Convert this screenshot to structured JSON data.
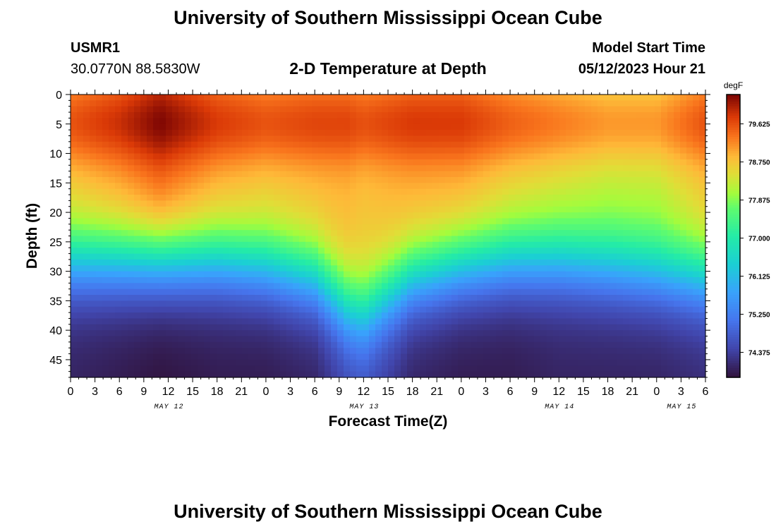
{
  "page": {
    "title": "University of Southern Mississippi Ocean Cube",
    "footer_title": "University of Southern Mississippi Ocean Cube"
  },
  "header": {
    "station_id": "USMR1",
    "coordinates": "30.0770N  88.5830W",
    "plot_title": "2-D Temperature at Depth",
    "model_label": "Model Start Time",
    "model_time": "05/12/2023 Hour 21"
  },
  "chart_data": {
    "type": "heatmap",
    "title": "2-D Temperature at Depth",
    "xlabel": "Forecast Time(Z)",
    "ylabel": "Depth (ft)",
    "x_range_hours": [
      0,
      78
    ],
    "x_ticks": [
      {
        "h": 0,
        "label": "0"
      },
      {
        "h": 3,
        "label": "3"
      },
      {
        "h": 6,
        "label": "6"
      },
      {
        "h": 9,
        "label": "9"
      },
      {
        "h": 12,
        "label": "12"
      },
      {
        "h": 15,
        "label": "15"
      },
      {
        "h": 18,
        "label": "18"
      },
      {
        "h": 21,
        "label": "21"
      },
      {
        "h": 24,
        "label": "0"
      },
      {
        "h": 27,
        "label": "3"
      },
      {
        "h": 30,
        "label": "6"
      },
      {
        "h": 33,
        "label": "9"
      },
      {
        "h": 36,
        "label": "12"
      },
      {
        "h": 39,
        "label": "15"
      },
      {
        "h": 42,
        "label": "18"
      },
      {
        "h": 45,
        "label": "21"
      },
      {
        "h": 48,
        "label": "0"
      },
      {
        "h": 51,
        "label": "3"
      },
      {
        "h": 54,
        "label": "6"
      },
      {
        "h": 57,
        "label": "9"
      },
      {
        "h": 60,
        "label": "12"
      },
      {
        "h": 63,
        "label": "15"
      },
      {
        "h": 66,
        "label": "18"
      },
      {
        "h": 69,
        "label": "21"
      },
      {
        "h": 72,
        "label": "0"
      },
      {
        "h": 75,
        "label": "3"
      },
      {
        "h": 78,
        "label": "6"
      }
    ],
    "date_labels": [
      {
        "h": 12,
        "label": "MAY 12"
      },
      {
        "h": 36,
        "label": "MAY 13"
      },
      {
        "h": 60,
        "label": "MAY 14"
      },
      {
        "h": 75,
        "label": "MAY 15"
      }
    ],
    "y_range": [
      0,
      48
    ],
    "y_ticks": [
      0,
      5,
      10,
      15,
      20,
      25,
      30,
      35,
      40,
      45
    ],
    "colorbar": {
      "unit": "degF",
      "range": [
        73.8,
        80.3
      ],
      "ticks": [
        74.375,
        75.25,
        76.125,
        77.0,
        77.875,
        78.75,
        79.625
      ],
      "tick_labels": [
        "74.375",
        "75.250",
        "76.125",
        "77.000",
        "77.875",
        "78.750",
        "79.625"
      ]
    },
    "profile_hours": [
      0,
      6,
      11,
      18,
      24,
      30,
      34,
      36,
      42,
      48,
      54,
      60,
      66,
      72,
      78
    ],
    "thermocline_depth_ft": [
      28,
      28,
      28,
      28,
      29,
      31,
      36,
      37,
      31,
      29,
      28,
      28,
      29,
      30,
      31
    ],
    "surface_layer_peak_degF": [
      79.6,
      79.9,
      80.3,
      79.8,
      79.6,
      79.7,
      79.7,
      79.6,
      79.8,
      79.8,
      79.5,
      79.3,
      79.1,
      79.1,
      79.6
    ],
    "bottom_temp_degF": [
      74.0,
      73.9,
      73.8,
      73.9,
      73.9,
      74.0,
      74.4,
      74.5,
      74.0,
      73.9,
      73.9,
      74.0,
      74.0,
      74.0,
      74.1
    ]
  }
}
